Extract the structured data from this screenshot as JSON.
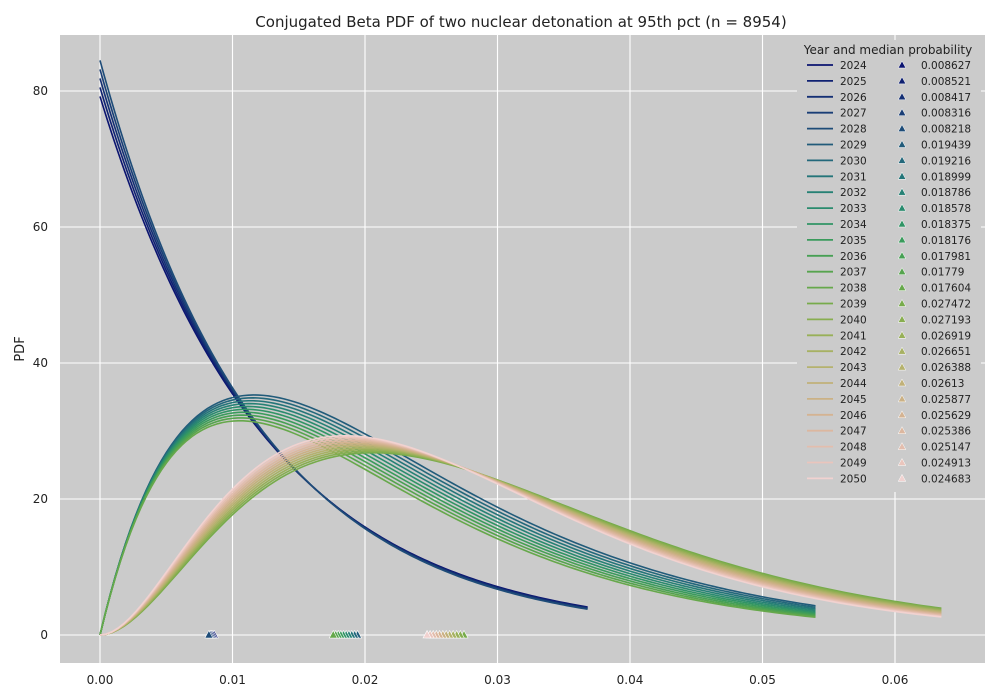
{
  "chart_data": {
    "type": "line",
    "title": "Conjugated Beta PDF of two nuclear detonation at 95th pct (n = 8954)",
    "xlabel": "",
    "ylabel": "PDF",
    "xlim": [
      -0.003,
      0.0665
    ],
    "ylim": [
      -3.5,
      88
    ],
    "x_ticks": [
      "0.00",
      "0.01",
      "0.02",
      "0.03",
      "0.04",
      "0.05",
      "0.06"
    ],
    "y_ticks": [
      "0",
      "20",
      "40",
      "60",
      "80"
    ],
    "grid": true,
    "background": "#cbcbcb",
    "legend": {
      "title": "Year and median probability",
      "position": "top-right",
      "columns": 2
    },
    "series": [
      {
        "name": "2024",
        "median_label": "0.008627",
        "median": 0.008627,
        "group": 1,
        "color": "#0b1470"
      },
      {
        "name": "2025",
        "median_label": "0.008521",
        "median": 0.008521,
        "group": 1,
        "color": "#0f2172"
      },
      {
        "name": "2026",
        "median_label": "0.008417",
        "median": 0.008417,
        "group": 1,
        "color": "#142f74"
      },
      {
        "name": "2027",
        "median_label": "0.008316",
        "median": 0.008316,
        "group": 1,
        "color": "#193e76"
      },
      {
        "name": "2028",
        "median_label": "0.008218",
        "median": 0.008218,
        "group": 1,
        "color": "#1e4c78"
      },
      {
        "name": "2029",
        "median_label": "0.019439",
        "median": 0.019439,
        "group": 2,
        "color": "#215b7a"
      },
      {
        "name": "2030",
        "median_label": "0.019216",
        "median": 0.019216,
        "group": 2,
        "color": "#23687b"
      },
      {
        "name": "2031",
        "median_label": "0.018999",
        "median": 0.018999,
        "group": 2,
        "color": "#247579"
      },
      {
        "name": "2032",
        "median_label": "0.018786",
        "median": 0.018786,
        "group": 2,
        "color": "#268175"
      },
      {
        "name": "2033",
        "median_label": "0.018578",
        "median": 0.018578,
        "group": 2,
        "color": "#2a8b6e"
      },
      {
        "name": "2034",
        "median_label": "0.018375",
        "median": 0.018375,
        "group": 2,
        "color": "#309465"
      },
      {
        "name": "2035",
        "median_label": "0.018176",
        "median": 0.018176,
        "group": 2,
        "color": "#3a9b5c"
      },
      {
        "name": "2036",
        "median_label": "0.017981",
        "median": 0.017981,
        "group": 2,
        "color": "#47a054"
      },
      {
        "name": "2037",
        "median_label": "0.01779",
        "median": 0.01779,
        "group": 2,
        "color": "#56a44e"
      },
      {
        "name": "2038",
        "median_label": "0.017604",
        "median": 0.017604,
        "group": 2,
        "color": "#66a84b"
      },
      {
        "name": "2039",
        "median_label": "0.027472",
        "median": 0.027472,
        "group": 3,
        "color": "#77ab4b"
      },
      {
        "name": "2040",
        "median_label": "0.027193",
        "median": 0.027193,
        "group": 3,
        "color": "#88ae50"
      },
      {
        "name": "2041",
        "median_label": "0.026919",
        "median": 0.026919,
        "group": 3,
        "color": "#98b058"
      },
      {
        "name": "2042",
        "median_label": "0.026651",
        "median": 0.026651,
        "group": 3,
        "color": "#a7b163"
      },
      {
        "name": "2043",
        "median_label": "0.026388",
        "median": 0.026388,
        "group": 3,
        "color": "#b5b26e"
      },
      {
        "name": "2044",
        "median_label": "0.02613",
        "median": 0.02613,
        "group": 3,
        "color": "#c1b179"
      },
      {
        "name": "2045",
        "median_label": "0.025877",
        "median": 0.025877,
        "group": 3,
        "color": "#cbb185"
      },
      {
        "name": "2046",
        "median_label": "0.025629",
        "median": 0.025629,
        "group": 3,
        "color": "#d4b392"
      },
      {
        "name": "2047",
        "median_label": "0.025386",
        "median": 0.025386,
        "group": 3,
        "color": "#dcb79f"
      },
      {
        "name": "2048",
        "median_label": "0.025147",
        "median": 0.025147,
        "group": 3,
        "color": "#e3bdad"
      },
      {
        "name": "2049",
        "median_label": "0.024913",
        "median": 0.024913,
        "group": 3,
        "color": "#eac5bc"
      },
      {
        "name": "2050",
        "median_label": "0.024683",
        "median": 0.024683,
        "group": 3,
        "color": "#f1d2d0"
      }
    ],
    "curve_groups": [
      {
        "group": 1,
        "shape_a": 1,
        "x_end": 0.0368,
        "peak_min": 79.2,
        "peak_max": 84.5
      },
      {
        "group": 2,
        "shape_a": 2,
        "x_end": 0.054,
        "peak_min": 31.5,
        "peak_max": 35.3
      },
      {
        "group": 3,
        "shape_a": 3,
        "x_end": 0.0635,
        "peak_min": 26.8,
        "peak_max": 29.3
      }
    ]
  }
}
